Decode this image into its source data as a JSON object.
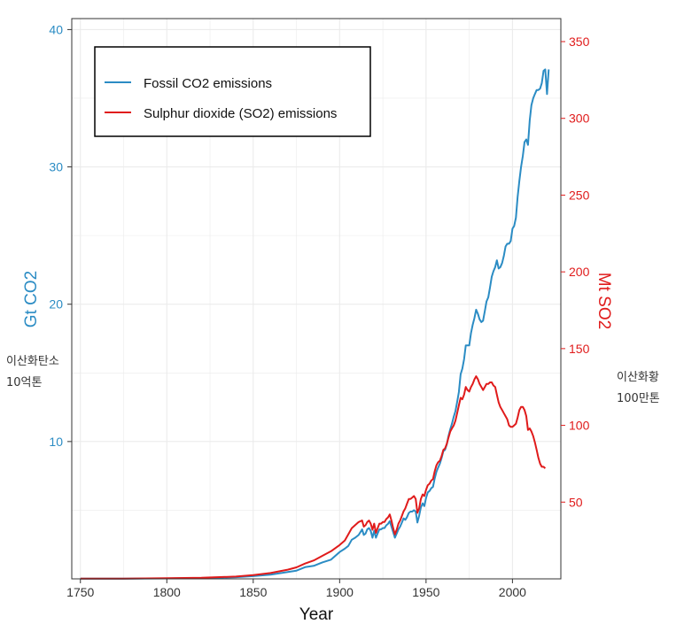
{
  "chart_data": {
    "type": "line",
    "title": "",
    "xlabel": "Year",
    "ylabel_left": "Gt CO2",
    "ylabel_right": "Mt SO2",
    "xlim": [
      1745,
      2028
    ],
    "ylim_left": [
      0,
      40.8
    ],
    "ylim_right": [
      0,
      365
    ],
    "x_ticks": [
      1750,
      1800,
      1850,
      1900,
      1950,
      2000
    ],
    "y_ticks_left": [
      10,
      20,
      30,
      40
    ],
    "y_ticks_right": [
      50,
      100,
      150,
      200,
      250,
      300,
      350
    ],
    "grid": true,
    "legend_position": "top-left",
    "series": [
      {
        "name": "Fossil CO2 emissions",
        "axis": "left",
        "color": "#2b8cc4",
        "points": [
          [
            1750,
            0.01
          ],
          [
            1775,
            0.02
          ],
          [
            1800,
            0.03
          ],
          [
            1820,
            0.05
          ],
          [
            1840,
            0.12
          ],
          [
            1850,
            0.2
          ],
          [
            1860,
            0.3
          ],
          [
            1870,
            0.5
          ],
          [
            1875,
            0.6
          ],
          [
            1880,
            0.85
          ],
          [
            1885,
            0.95
          ],
          [
            1890,
            1.2
          ],
          [
            1895,
            1.4
          ],
          [
            1900,
            1.95
          ],
          [
            1903,
            2.2
          ],
          [
            1905,
            2.4
          ],
          [
            1907,
            2.85
          ],
          [
            1909,
            3.0
          ],
          [
            1911,
            3.2
          ],
          [
            1913,
            3.6
          ],
          [
            1914,
            3.2
          ],
          [
            1915,
            3.3
          ],
          [
            1916,
            3.6
          ],
          [
            1917,
            3.7
          ],
          [
            1918,
            3.5
          ],
          [
            1919,
            3.0
          ],
          [
            1920,
            3.5
          ],
          [
            1921,
            3.0
          ],
          [
            1922,
            3.3
          ],
          [
            1923,
            3.6
          ],
          [
            1924,
            3.6
          ],
          [
            1925,
            3.7
          ],
          [
            1926,
            3.7
          ],
          [
            1927,
            3.9
          ],
          [
            1928,
            4.0
          ],
          [
            1929,
            4.2
          ],
          [
            1930,
            3.8
          ],
          [
            1931,
            3.4
          ],
          [
            1932,
            3.0
          ],
          [
            1933,
            3.3
          ],
          [
            1934,
            3.6
          ],
          [
            1935,
            3.8
          ],
          [
            1936,
            4.1
          ],
          [
            1937,
            4.4
          ],
          [
            1938,
            4.3
          ],
          [
            1939,
            4.5
          ],
          [
            1940,
            4.8
          ],
          [
            1941,
            4.9
          ],
          [
            1942,
            4.9
          ],
          [
            1943,
            5.0
          ],
          [
            1944,
            4.9
          ],
          [
            1945,
            4.1
          ],
          [
            1946,
            4.6
          ],
          [
            1947,
            5.2
          ],
          [
            1948,
            5.5
          ],
          [
            1949,
            5.3
          ],
          [
            1950,
            5.9
          ],
          [
            1951,
            6.3
          ],
          [
            1952,
            6.4
          ],
          [
            1953,
            6.6
          ],
          [
            1954,
            6.7
          ],
          [
            1955,
            7.3
          ],
          [
            1956,
            7.8
          ],
          [
            1957,
            8.1
          ],
          [
            1958,
            8.4
          ],
          [
            1959,
            8.8
          ],
          [
            1960,
            9.3
          ],
          [
            1961,
            9.4
          ],
          [
            1962,
            9.8
          ],
          [
            1963,
            10.4
          ],
          [
            1964,
            10.9
          ],
          [
            1965,
            11.3
          ],
          [
            1966,
            11.8
          ],
          [
            1967,
            12.2
          ],
          [
            1968,
            12.9
          ],
          [
            1969,
            13.6
          ],
          [
            1970,
            14.9
          ],
          [
            1971,
            15.3
          ],
          [
            1972,
            16.0
          ],
          [
            1973,
            17.0
          ],
          [
            1974,
            17.0
          ],
          [
            1975,
            17.0
          ],
          [
            1976,
            17.9
          ],
          [
            1977,
            18.5
          ],
          [
            1978,
            19.0
          ],
          [
            1979,
            19.6
          ],
          [
            1980,
            19.3
          ],
          [
            1981,
            18.9
          ],
          [
            1982,
            18.7
          ],
          [
            1983,
            18.8
          ],
          [
            1984,
            19.5
          ],
          [
            1985,
            20.2
          ],
          [
            1986,
            20.5
          ],
          [
            1987,
            21.2
          ],
          [
            1988,
            22.0
          ],
          [
            1989,
            22.4
          ],
          [
            1990,
            22.7
          ],
          [
            1991,
            23.2
          ],
          [
            1992,
            22.6
          ],
          [
            1993,
            22.7
          ],
          [
            1994,
            23.0
          ],
          [
            1995,
            23.5
          ],
          [
            1996,
            24.2
          ],
          [
            1997,
            24.4
          ],
          [
            1998,
            24.4
          ],
          [
            1999,
            24.6
          ],
          [
            2000,
            25.5
          ],
          [
            2001,
            25.7
          ],
          [
            2002,
            26.3
          ],
          [
            2003,
            27.8
          ],
          [
            2004,
            29.0
          ],
          [
            2005,
            30.0
          ],
          [
            2006,
            30.8
          ],
          [
            2007,
            31.8
          ],
          [
            2008,
            32.0
          ],
          [
            2009,
            31.6
          ],
          [
            2010,
            33.4
          ],
          [
            2011,
            34.5
          ],
          [
            2012,
            35.0
          ],
          [
            2013,
            35.3
          ],
          [
            2014,
            35.6
          ],
          [
            2015,
            35.6
          ],
          [
            2016,
            35.7
          ],
          [
            2017,
            36.1
          ],
          [
            2018,
            37.0
          ],
          [
            2019,
            37.1
          ],
          [
            2020,
            35.3
          ],
          [
            2021,
            37.1
          ]
        ]
      },
      {
        "name": "Sulphur dioxide (SO2) emissions",
        "axis": "right",
        "color": "#e01b1b",
        "points": [
          [
            1750,
            0.1
          ],
          [
            1775,
            0.2
          ],
          [
            1800,
            0.4
          ],
          [
            1820,
            0.7
          ],
          [
            1840,
            1.5
          ],
          [
            1850,
            2.5
          ],
          [
            1860,
            3.8
          ],
          [
            1870,
            6
          ],
          [
            1875,
            7.5
          ],
          [
            1880,
            10
          ],
          [
            1885,
            12
          ],
          [
            1890,
            15
          ],
          [
            1895,
            18
          ],
          [
            1900,
            22
          ],
          [
            1903,
            25
          ],
          [
            1905,
            29
          ],
          [
            1907,
            33
          ],
          [
            1909,
            35
          ],
          [
            1911,
            37
          ],
          [
            1913,
            38
          ],
          [
            1914,
            34
          ],
          [
            1915,
            35
          ],
          [
            1916,
            37
          ],
          [
            1917,
            38
          ],
          [
            1918,
            36
          ],
          [
            1919,
            32
          ],
          [
            1920,
            36
          ],
          [
            1921,
            30
          ],
          [
            1922,
            33
          ],
          [
            1923,
            36
          ],
          [
            1924,
            36
          ],
          [
            1925,
            37
          ],
          [
            1926,
            37
          ],
          [
            1927,
            39
          ],
          [
            1928,
            40
          ],
          [
            1929,
            42
          ],
          [
            1930,
            38
          ],
          [
            1931,
            33
          ],
          [
            1932,
            29
          ],
          [
            1933,
            32
          ],
          [
            1934,
            36
          ],
          [
            1935,
            38
          ],
          [
            1936,
            41
          ],
          [
            1937,
            44
          ],
          [
            1938,
            46
          ],
          [
            1939,
            49
          ],
          [
            1940,
            52
          ],
          [
            1941,
            52
          ],
          [
            1942,
            53
          ],
          [
            1943,
            54
          ],
          [
            1944,
            52
          ],
          [
            1945,
            43
          ],
          [
            1946,
            46
          ],
          [
            1947,
            52
          ],
          [
            1948,
            55
          ],
          [
            1949,
            54
          ],
          [
            1950,
            58
          ],
          [
            1951,
            61
          ],
          [
            1952,
            62
          ],
          [
            1953,
            64
          ],
          [
            1954,
            65
          ],
          [
            1955,
            70
          ],
          [
            1956,
            74
          ],
          [
            1957,
            76
          ],
          [
            1958,
            77
          ],
          [
            1959,
            80
          ],
          [
            1960,
            84
          ],
          [
            1961,
            85
          ],
          [
            1962,
            88
          ],
          [
            1963,
            92
          ],
          [
            1964,
            96
          ],
          [
            1965,
            98
          ],
          [
            1966,
            100
          ],
          [
            1967,
            103
          ],
          [
            1968,
            108
          ],
          [
            1969,
            113
          ],
          [
            1970,
            118
          ],
          [
            1971,
            117
          ],
          [
            1972,
            120
          ],
          [
            1973,
            125
          ],
          [
            1974,
            123
          ],
          [
            1975,
            122
          ],
          [
            1976,
            125
          ],
          [
            1977,
            127
          ],
          [
            1978,
            130
          ],
          [
            1979,
            132
          ],
          [
            1980,
            130
          ],
          [
            1981,
            127
          ],
          [
            1982,
            125
          ],
          [
            1983,
            123
          ],
          [
            1984,
            125
          ],
          [
            1985,
            127
          ],
          [
            1986,
            127
          ],
          [
            1987,
            128
          ],
          [
            1988,
            128
          ],
          [
            1989,
            126
          ],
          [
            1990,
            125
          ],
          [
            1991,
            120
          ],
          [
            1992,
            115
          ],
          [
            1993,
            112
          ],
          [
            1994,
            110
          ],
          [
            1995,
            108
          ],
          [
            1996,
            106
          ],
          [
            1997,
            104
          ],
          [
            1998,
            100
          ],
          [
            1999,
            99
          ],
          [
            2000,
            99
          ],
          [
            2001,
            100
          ],
          [
            2002,
            101
          ],
          [
            2003,
            105
          ],
          [
            2004,
            110
          ],
          [
            2005,
            112
          ],
          [
            2006,
            112
          ],
          [
            2007,
            110
          ],
          [
            2008,
            106
          ],
          [
            2009,
            97
          ],
          [
            2010,
            98
          ],
          [
            2011,
            96
          ],
          [
            2012,
            93
          ],
          [
            2013,
            89
          ],
          [
            2014,
            84
          ],
          [
            2015,
            79
          ],
          [
            2016,
            75
          ],
          [
            2017,
            73
          ],
          [
            2018,
            73
          ],
          [
            2019,
            72
          ]
        ]
      }
    ]
  },
  "notes": {
    "left_line1": "이산화탄소",
    "left_line2": "10억톤",
    "right_line1": "이산화황",
    "right_line2": "100만톤"
  }
}
